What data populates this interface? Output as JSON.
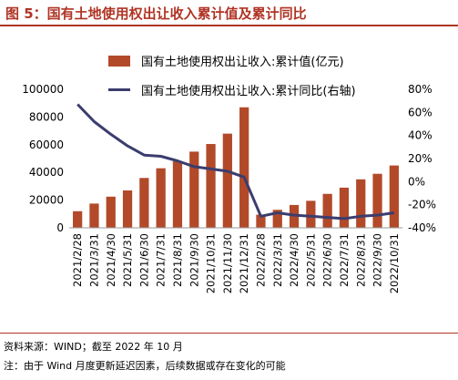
{
  "title": "图 5：国有土地使用权出让收入累计值及累计同比",
  "source": "资料来源：WIND；截至 2022 年 10 月",
  "note": "注：由于 Wind 月度更新延迟因素，后续数据或存在变化的可能",
  "colors": {
    "accent": "#b03424",
    "bar": "#b24a2a",
    "line": "#3b3d6e"
  },
  "chart_data": {
    "type": "bar",
    "categories": [
      "2021/2/28",
      "2021/3/31",
      "2021/4/30",
      "2021/5/31",
      "2021/6/30",
      "2021/7/31",
      "2021/8/31",
      "2021/9/30",
      "2021/10/31",
      "2021/11/30",
      "2021/12/31",
      "2022/2/28",
      "2022/3/31",
      "2022/4/30",
      "2022/5/31",
      "2022/6/30",
      "2022/7/31",
      "2022/8/31",
      "2022/9/30",
      "2022/10/31"
    ],
    "series": [
      {
        "name": "国有土地使用权出让收入:累计值(亿元)",
        "type": "bar",
        "axis": "left",
        "values": [
          12000,
          17500,
          22500,
          27000,
          36000,
          43000,
          48000,
          55000,
          60500,
          68000,
          87000,
          9500,
          13000,
          16500,
          19500,
          24500,
          29000,
          35000,
          39000,
          45000
        ]
      },
      {
        "name": "国有土地使用权出让收入:累计同比(右轴)",
        "type": "line",
        "axis": "right",
        "values": [
          67,
          52,
          41,
          31,
          23,
          22,
          18,
          13,
          11,
          9,
          4,
          -30,
          -27,
          -29,
          -30,
          -31,
          -32,
          -30,
          -29,
          -27
        ]
      }
    ],
    "yticks_left": [
      "100000",
      "80000",
      "60000",
      "40000",
      "20000",
      "0"
    ],
    "yticks_right": [
      "80%",
      "60%",
      "40%",
      "20%",
      "0%",
      "-20%",
      "-40%"
    ],
    "ylim_left": [
      0,
      100000
    ],
    "ylim_right": [
      -40,
      80
    ],
    "grid": false,
    "legend_position": "top"
  }
}
